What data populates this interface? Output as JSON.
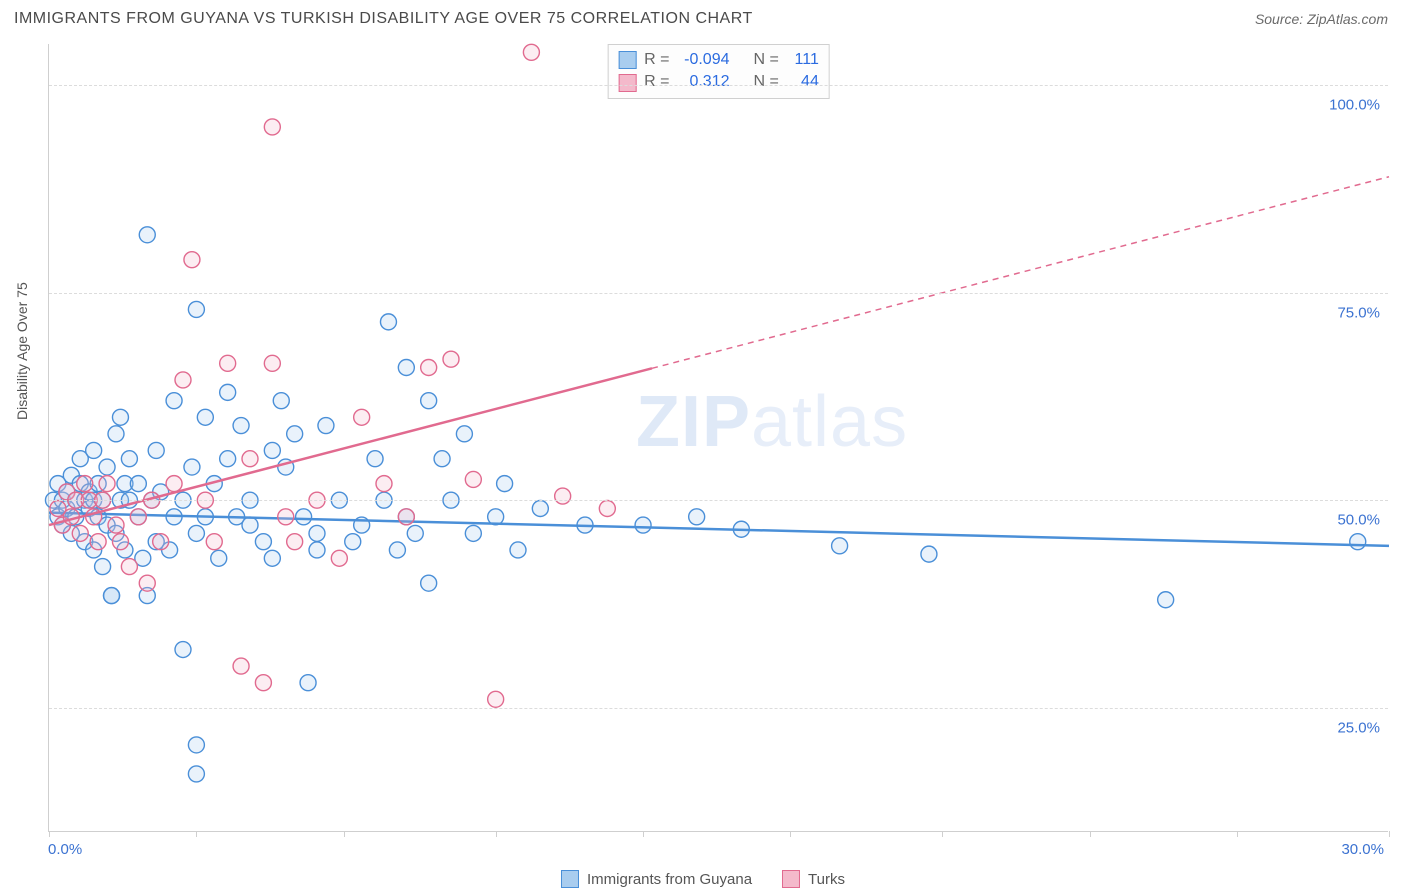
{
  "header": {
    "title": "IMMIGRANTS FROM GUYANA VS TURKISH DISABILITY AGE OVER 75 CORRELATION CHART",
    "source": "Source: ZipAtlas.com"
  },
  "watermark": {
    "zip": "ZIP",
    "atlas": "atlas"
  },
  "chart": {
    "type": "scatter",
    "ylabel": "Disability Age Over 75",
    "background_color": "#ffffff",
    "grid_color": "#dcdcdc",
    "axis_color": "#cfcfcf",
    "xlim": [
      0,
      30
    ],
    "ylim": [
      10,
      105
    ],
    "yticks": [
      25,
      50,
      75,
      100
    ],
    "ytick_labels": [
      "25.0%",
      "50.0%",
      "75.0%",
      "100.0%"
    ],
    "xticks": [
      0,
      3.3,
      6.6,
      10,
      13.3,
      16.6,
      20,
      23.3,
      26.6,
      30
    ],
    "xtick_labels": {
      "start": "0.0%",
      "end": "30.0%"
    },
    "tick_label_color": "#3b72d1",
    "label_fontsize": 14,
    "marker_radius": 8,
    "marker_fill_opacity": 0.25,
    "marker_stroke_width": 1.4,
    "series": [
      {
        "name": "Immigrants from Guyana",
        "color": "#4a8fd8",
        "fill": "#a9cdef",
        "R": "-0.094",
        "N": "111",
        "trend": {
          "x1": 0,
          "y1": 48.5,
          "x2": 30,
          "y2": 44.5,
          "dash_after_x": 30
        },
        "points": [
          [
            0.1,
            50
          ],
          [
            0.2,
            52
          ],
          [
            0.2,
            48
          ],
          [
            0.3,
            50
          ],
          [
            0.3,
            47
          ],
          [
            0.4,
            51
          ],
          [
            0.4,
            49
          ],
          [
            0.5,
            53
          ],
          [
            0.5,
            46
          ],
          [
            0.6,
            50
          ],
          [
            0.6,
            48
          ],
          [
            0.7,
            52
          ],
          [
            0.7,
            55
          ],
          [
            0.8,
            50
          ],
          [
            0.8,
            45
          ],
          [
            0.9,
            49
          ],
          [
            0.9,
            51
          ],
          [
            1.0,
            50
          ],
          [
            1.0,
            56
          ],
          [
            1.0,
            44
          ],
          [
            1.1,
            48
          ],
          [
            1.1,
            52
          ],
          [
            1.2,
            50
          ],
          [
            1.2,
            42
          ],
          [
            1.3,
            54
          ],
          [
            1.3,
            47
          ],
          [
            1.4,
            38.5
          ],
          [
            1.4,
            38.5
          ],
          [
            1.5,
            58
          ],
          [
            1.5,
            46
          ],
          [
            1.6,
            50
          ],
          [
            1.6,
            60
          ],
          [
            1.7,
            44
          ],
          [
            1.7,
            52
          ],
          [
            1.8,
            50
          ],
          [
            1.8,
            55
          ],
          [
            2.0,
            52
          ],
          [
            2.0,
            48
          ],
          [
            2.1,
            43
          ],
          [
            2.2,
            38.5
          ],
          [
            2.2,
            82
          ],
          [
            2.3,
            50
          ],
          [
            2.4,
            56
          ],
          [
            2.4,
            45
          ],
          [
            2.5,
            51
          ],
          [
            2.7,
            44
          ],
          [
            2.8,
            62
          ],
          [
            2.8,
            48
          ],
          [
            3.0,
            50
          ],
          [
            3.0,
            32
          ],
          [
            3.2,
            54
          ],
          [
            3.3,
            17
          ],
          [
            3.3,
            20.5
          ],
          [
            3.3,
            46
          ],
          [
            3.3,
            73
          ],
          [
            3.5,
            48
          ],
          [
            3.5,
            60
          ],
          [
            3.7,
            52
          ],
          [
            3.8,
            43
          ],
          [
            4.0,
            55
          ],
          [
            4.0,
            63
          ],
          [
            4.2,
            48
          ],
          [
            4.3,
            59
          ],
          [
            4.5,
            47
          ],
          [
            4.5,
            50
          ],
          [
            4.8,
            45
          ],
          [
            5.0,
            56
          ],
          [
            5.0,
            43
          ],
          [
            5.2,
            62
          ],
          [
            5.3,
            54
          ],
          [
            5.5,
            58
          ],
          [
            5.7,
            48
          ],
          [
            5.8,
            28
          ],
          [
            6.0,
            44
          ],
          [
            6.0,
            46
          ],
          [
            6.2,
            59
          ],
          [
            6.5,
            50
          ],
          [
            6.8,
            45
          ],
          [
            7.0,
            47
          ],
          [
            7.3,
            55
          ],
          [
            7.5,
            50
          ],
          [
            7.6,
            71.5
          ],
          [
            7.8,
            44
          ],
          [
            8.0,
            48
          ],
          [
            8.0,
            66
          ],
          [
            8.2,
            46
          ],
          [
            8.5,
            40
          ],
          [
            8.5,
            62
          ],
          [
            8.8,
            55
          ],
          [
            9.0,
            50
          ],
          [
            9.3,
            58
          ],
          [
            9.5,
            46
          ],
          [
            10.0,
            48
          ],
          [
            10.2,
            52
          ],
          [
            10.5,
            44
          ],
          [
            11.0,
            49
          ],
          [
            12.0,
            47
          ],
          [
            13.3,
            47
          ],
          [
            14.5,
            48
          ],
          [
            15.5,
            46.5
          ],
          [
            17.7,
            44.5
          ],
          [
            19.7,
            43.5
          ],
          [
            25.0,
            38
          ],
          [
            29.3,
            45
          ]
        ]
      },
      {
        "name": "Turks",
        "color": "#e16a8f",
        "fill": "#f4b9cb",
        "R": "0.312",
        "N": "44",
        "trend": {
          "x1": 0,
          "y1": 47,
          "x2": 30,
          "y2": 89,
          "dash_after_x": 13.5
        },
        "points": [
          [
            0.2,
            49
          ],
          [
            0.3,
            47
          ],
          [
            0.4,
            51
          ],
          [
            0.5,
            48
          ],
          [
            0.6,
            50
          ],
          [
            0.7,
            46
          ],
          [
            0.8,
            52
          ],
          [
            0.9,
            50
          ],
          [
            1.0,
            48
          ],
          [
            1.1,
            45
          ],
          [
            1.2,
            50
          ],
          [
            1.3,
            52
          ],
          [
            1.5,
            47
          ],
          [
            1.6,
            45
          ],
          [
            1.8,
            42
          ],
          [
            2.0,
            48
          ],
          [
            2.2,
            40
          ],
          [
            2.3,
            50
          ],
          [
            2.5,
            45
          ],
          [
            2.8,
            52
          ],
          [
            3.0,
            64.5
          ],
          [
            3.2,
            79
          ],
          [
            3.5,
            50
          ],
          [
            3.7,
            45
          ],
          [
            4.0,
            66.5
          ],
          [
            4.3,
            30
          ],
          [
            4.5,
            55
          ],
          [
            4.8,
            28
          ],
          [
            5.0,
            66.5
          ],
          [
            5.0,
            95
          ],
          [
            5.3,
            48
          ],
          [
            5.5,
            45
          ],
          [
            6.0,
            50
          ],
          [
            6.5,
            43
          ],
          [
            7.0,
            60
          ],
          [
            7.5,
            52
          ],
          [
            8.0,
            48
          ],
          [
            8.5,
            66
          ],
          [
            9.0,
            67
          ],
          [
            9.5,
            52.5
          ],
          [
            10.0,
            26
          ],
          [
            10.8,
            104
          ],
          [
            11.5,
            50.5
          ],
          [
            12.5,
            49
          ]
        ]
      }
    ]
  },
  "stats_legend": {
    "R_label": "R =",
    "N_label": "N ="
  },
  "bottom_legend": {
    "items": [
      "Immigrants from Guyana",
      "Turks"
    ]
  }
}
